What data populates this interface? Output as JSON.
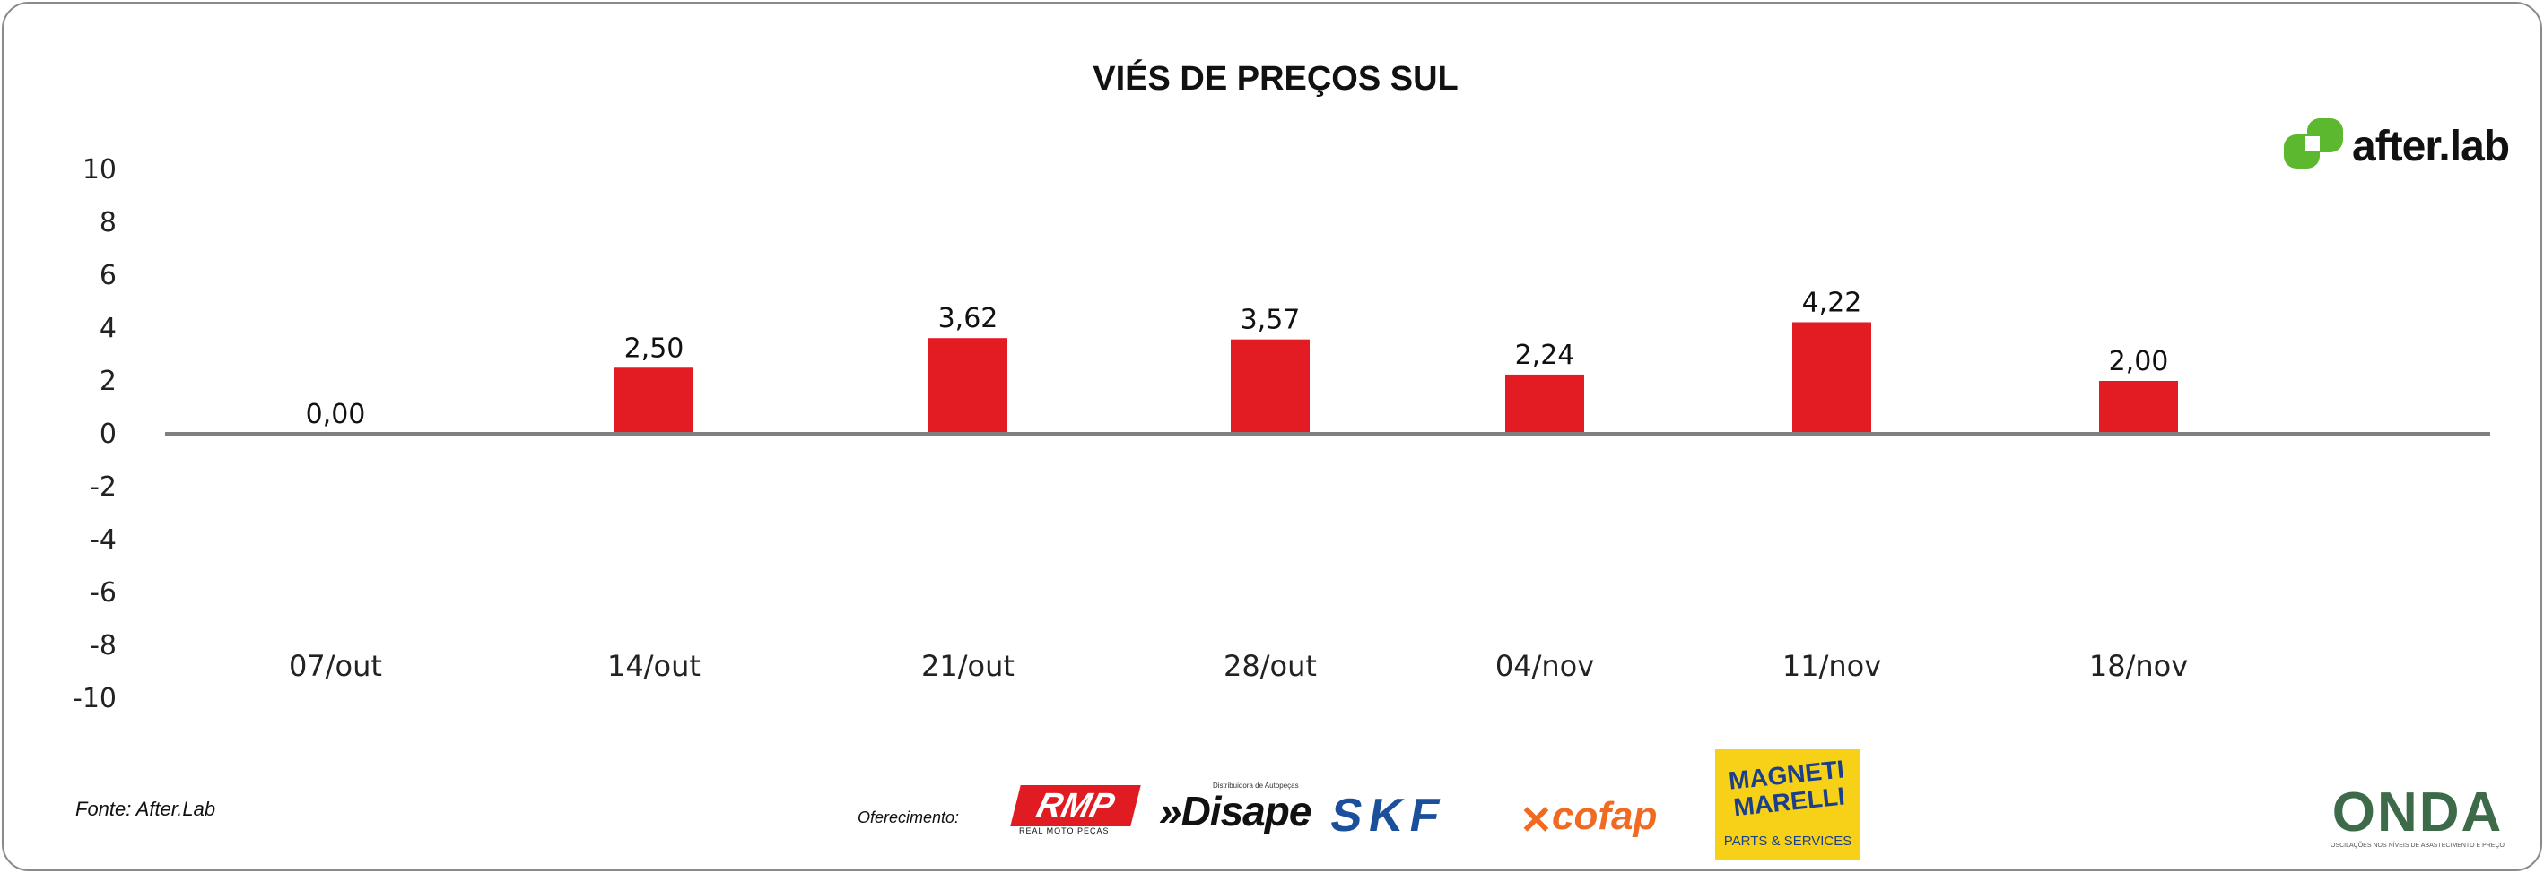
{
  "chart_data": {
    "type": "bar",
    "title": "VIÉS DE PREÇOS SUL",
    "xlabel": "",
    "ylabel": "",
    "categories": [
      "07/out",
      "14/out",
      "21/out",
      "28/out",
      "04/nov",
      "11/nov",
      "18/nov"
    ],
    "series": [
      {
        "values": [
          0.0,
          2.5,
          3.62,
          3.57,
          2.24,
          4.22,
          2.0
        ],
        "labels": [
          "0,00",
          "2,50",
          "3,62",
          "3,57",
          "2,24",
          "4,22",
          "2,00"
        ]
      }
    ],
    "ylim": [
      -10,
      10
    ],
    "yticks": [
      10,
      8,
      6,
      4,
      2,
      0,
      -2,
      -4,
      -6,
      -8,
      -10
    ],
    "grid": false,
    "legend": "none",
    "bar_color": "#e31b23",
    "axis_color": "#7f7f7f"
  },
  "source": "Fonte: After.Lab",
  "sponsor_label": "Oferecimento:",
  "logos": {
    "afterlab": "after.lab",
    "rmp": "RMP",
    "rmp_sub": "REAL MOTO PEÇAS",
    "disape": "»Disape",
    "disape_sub": "Distribuidora de Autopeças",
    "skf": "SKF",
    "cofap": "cofap",
    "magneti_line1": "MAGNETI MARELLI",
    "magneti_line2": "PARTS & SERVICES",
    "onda": "ONDA",
    "onda_sub": "OSCILAÇÕES NOS NÍVEIS DE ABASTECIMENTO E PREÇO"
  },
  "colors": {
    "brand_green": "#5cb82e",
    "skf_blue": "#1b4f9c",
    "cofap_orange": "#f06a22",
    "magneti_yellow": "#f7d117",
    "rmp_red": "#e11b22"
  }
}
